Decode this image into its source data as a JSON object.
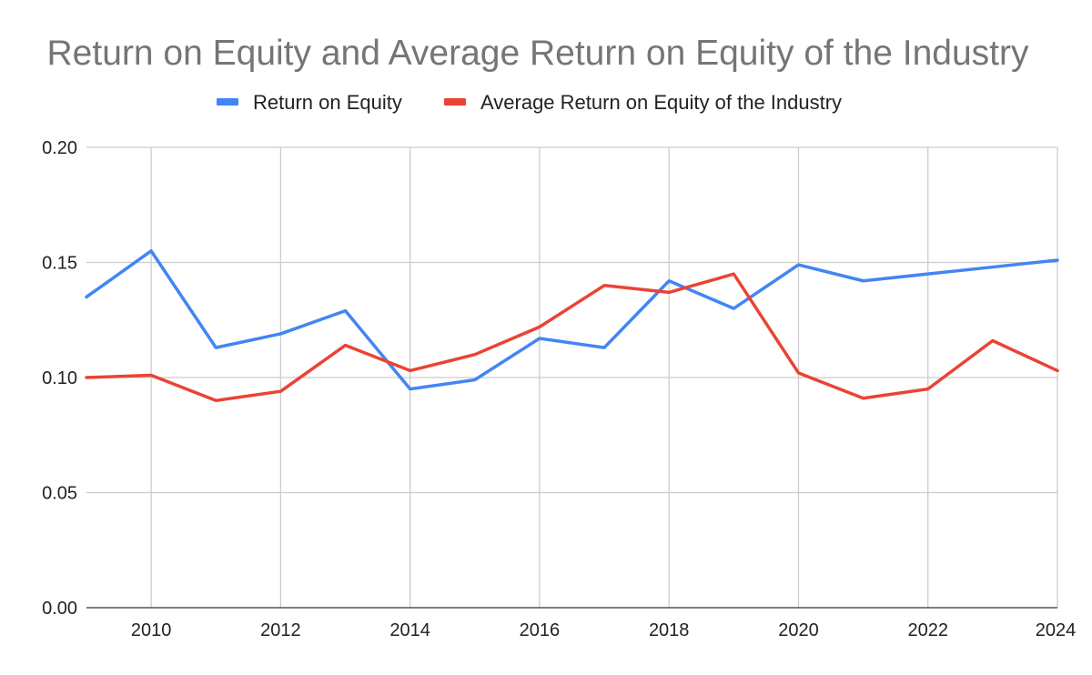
{
  "chart_data": {
    "type": "line",
    "title": "Return on Equity and Average Return on Equity of the Industry",
    "xlabel": "",
    "ylabel": "",
    "x": [
      2009,
      2010,
      2011,
      2012,
      2013,
      2014,
      2015,
      2016,
      2017,
      2018,
      2019,
      2020,
      2021,
      2022,
      2023,
      2024
    ],
    "xlim": [
      2009,
      2024
    ],
    "x_ticks": [
      "2010",
      "2012",
      "2014",
      "2016",
      "2018",
      "2020",
      "2022",
      "2024"
    ],
    "ylim": [
      0,
      0.2
    ],
    "y_ticks": [
      "0.00",
      "0.05",
      "0.10",
      "0.15",
      "0.20"
    ],
    "grid": true,
    "legend_position": "top",
    "series": [
      {
        "name": "Return on Equity",
        "color": "#4285f4",
        "values": [
          0.135,
          0.155,
          0.113,
          0.119,
          0.129,
          0.095,
          0.099,
          0.117,
          0.113,
          0.142,
          0.13,
          0.149,
          0.142,
          0.145,
          0.148,
          0.151
        ]
      },
      {
        "name": "Average Return on Equity of the Industry",
        "color": "#ea4335",
        "values": [
          0.1,
          0.101,
          0.09,
          0.094,
          0.114,
          0.103,
          0.11,
          0.122,
          0.14,
          0.137,
          0.145,
          0.102,
          0.091,
          0.095,
          0.116,
          0.103
        ]
      }
    ]
  }
}
